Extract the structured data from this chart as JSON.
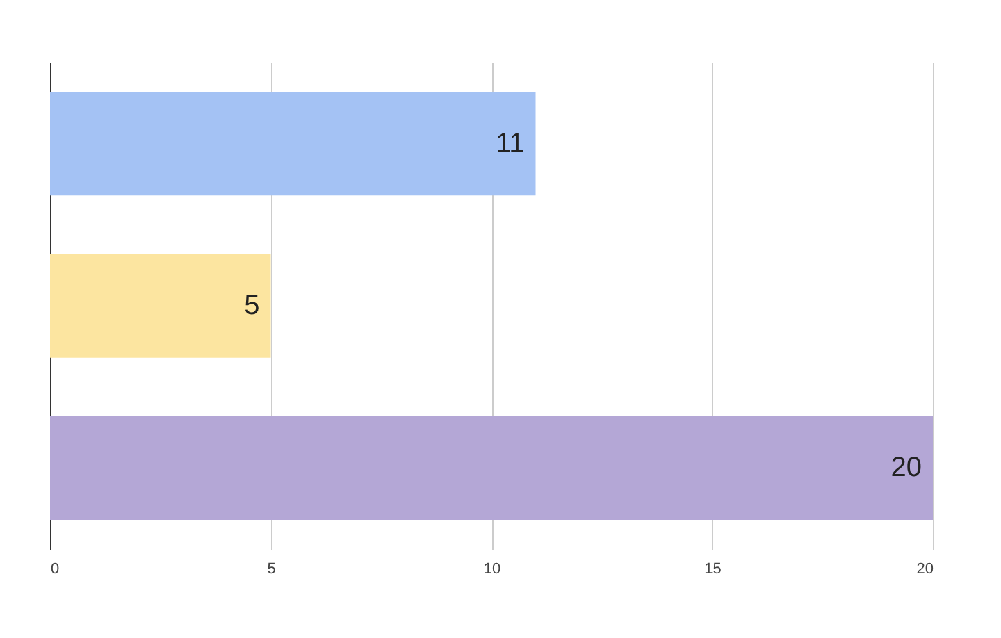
{
  "chart_data": {
    "type": "bar",
    "orientation": "horizontal",
    "categories": [
      null,
      null,
      null
    ],
    "values": [
      11,
      5,
      20
    ],
    "colors": [
      "#a4c2f4",
      "#fce5a0",
      "#b4a7d6"
    ],
    "xlim": [
      0,
      20
    ],
    "xticks": [
      0,
      5,
      10,
      15,
      20
    ],
    "grid": "x",
    "data_labels": true,
    "tick_labels": "x"
  }
}
